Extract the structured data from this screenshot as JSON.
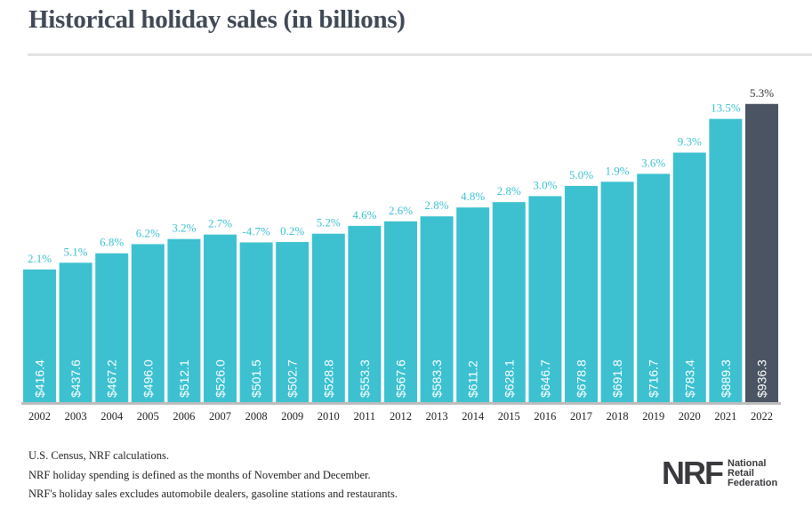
{
  "chart_data": {
    "type": "bar",
    "title": "Historical holiday sales (in billions)",
    "categories": [
      "2002",
      "2003",
      "2004",
      "2005",
      "2006",
      "2007",
      "2008",
      "2009",
      "2010",
      "2011",
      "2012",
      "2013",
      "2014",
      "2015",
      "2016",
      "2017",
      "2018",
      "2019",
      "2020",
      "2021",
      "2022"
    ],
    "values": [
      416.4,
      437.6,
      467.2,
      496.0,
      512.1,
      526.0,
      501.5,
      502.7,
      528.8,
      553.3,
      567.6,
      583.3,
      611.2,
      628.1,
      646.7,
      678.8,
      691.8,
      716.7,
      783.4,
      889.3,
      936.3
    ],
    "value_labels": [
      "$416.4",
      "$437.6",
      "$467.2",
      "$496.0",
      "$512.1",
      "$526.0",
      "$501.5",
      "$502.7",
      "$528.8",
      "$553.3",
      "$567.6",
      "$583.3",
      "$611.2",
      "$628.1",
      "$646.7",
      "$678.8",
      "$691.8",
      "$716.7",
      "$783.4",
      "$889.3",
      "$936.3"
    ],
    "growth_labels": [
      "2.1%",
      "5.1%",
      "6.8%",
      "6.2%",
      "3.2%",
      "2.7%",
      "-4.7%",
      "0.2%",
      "5.2%",
      "4.6%",
      "2.6%",
      "2.8%",
      "4.8%",
      "2.8%",
      "3.0%",
      "5.0%",
      "1.9%",
      "3.6%",
      "9.3%",
      "13.5%",
      "5.3%"
    ],
    "ylim": [
      0,
      1000
    ],
    "grid": false,
    "legend": "none",
    "colors": {
      "bar": "#3dc1d0",
      "highlight_bar": "#4a5462",
      "growth_label": "#3dc1d0",
      "highlight_label": "#333333"
    },
    "highlight_category": "2022"
  },
  "notes": [
    "U.S. Census, NRF calculations.",
    "NRF holiday spending is defined as the months of November and December.",
    "NRF's holiday sales excludes automobile dealers, gasoline stations and restaurants."
  ],
  "logo": {
    "mark": "NRF",
    "text": [
      "National",
      "Retail",
      "Federation"
    ]
  }
}
